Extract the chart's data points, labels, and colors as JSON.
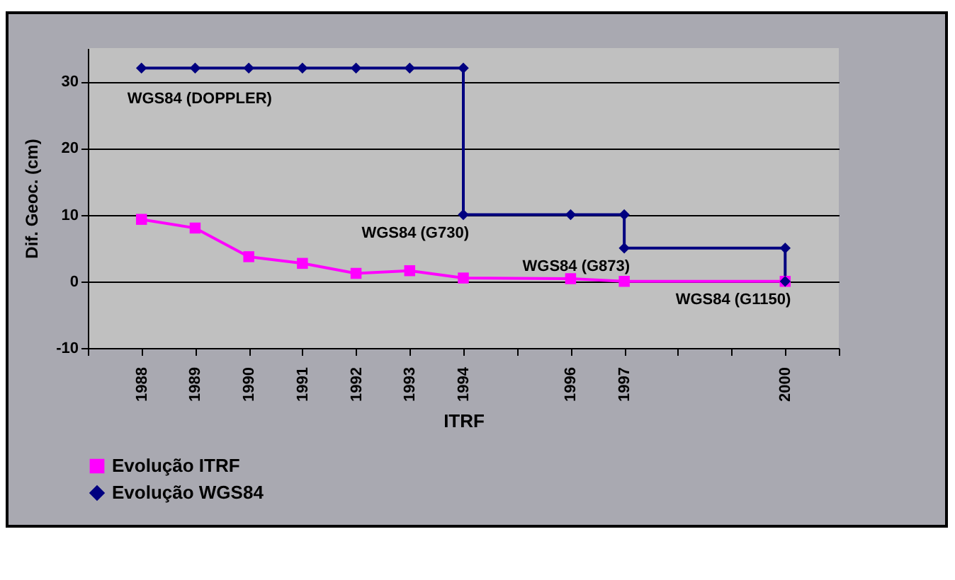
{
  "chart_data": {
    "type": "line",
    "xlabel": "ITRF",
    "ylabel": "Dif. Geoc. (cm)",
    "xlim": [
      1987,
      2001
    ],
    "ylim": [
      -10,
      35
    ],
    "xticks": [
      {
        "value": 1987,
        "label": null
      },
      1988,
      1989,
      1990,
      1991,
      1992,
      1993,
      1994,
      {
        "value": 1995,
        "label": null
      },
      1996,
      1997,
      {
        "value": 1998,
        "label": null
      },
      {
        "value": 1999,
        "label": null
      },
      2000,
      {
        "value": 2001,
        "label": null
      }
    ],
    "yticks": [
      -10,
      0,
      10,
      20,
      30
    ],
    "grid": "y",
    "legend": "bottom",
    "series": [
      {
        "name": "Evolução ITRF",
        "color": "#ff00ff",
        "marker": "square",
        "x": [
          1988,
          1989,
          1990,
          1991,
          1992,
          1993,
          1994,
          1996,
          1997,
          2000
        ],
        "values": [
          9.3,
          8,
          3.7,
          2.7,
          1.2,
          1.6,
          0.5,
          0.4,
          0,
          0
        ]
      },
      {
        "name": "Evolução WGS84",
        "color": "#000080",
        "marker": "diamond",
        "x": [
          1988,
          1989,
          1990,
          1991,
          1992,
          1993,
          1994,
          1994,
          1996,
          1997,
          1997,
          2000,
          2000
        ],
        "values": [
          32,
          32,
          32,
          32,
          32,
          32,
          32,
          10,
          10,
          10,
          5,
          5,
          0
        ]
      }
    ],
    "annotations": [
      {
        "text": "WGS84 (DOPPLER)",
        "x": 1988,
        "y": 32
      },
      {
        "text": "WGS84 (G730)",
        "x": 1994,
        "y": 10
      },
      {
        "text": "WGS84 (G873)",
        "x": 1997,
        "y": 5
      },
      {
        "text": "WGS84 (G1150)",
        "x": 2000,
        "y": 0
      }
    ]
  }
}
